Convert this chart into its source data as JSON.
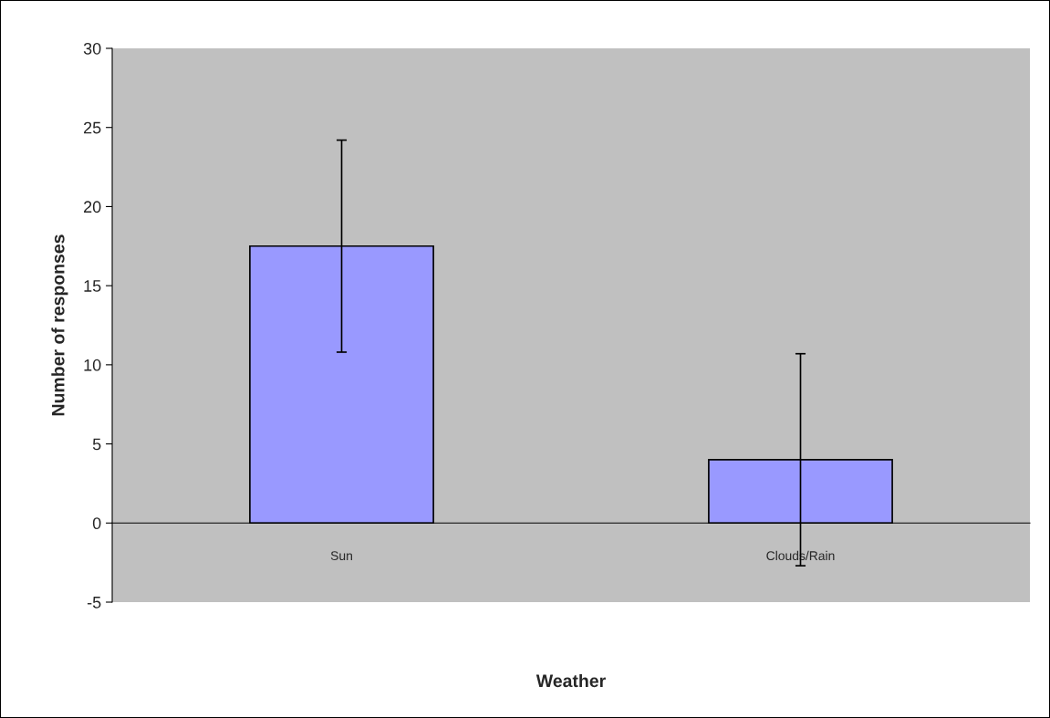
{
  "chart_data": {
    "type": "bar",
    "xlabel": "Weather",
    "ylabel": "Number of responses",
    "categories": [
      "Sun",
      "Clouds/Rain"
    ],
    "series": [
      {
        "color": "#9999ff",
        "values": [
          17.5,
          4
        ],
        "errors": [
          6.7,
          6.7
        ]
      }
    ],
    "ylim": [
      -5,
      30
    ],
    "yticks": [
      -5,
      0,
      5,
      10,
      15,
      20,
      25,
      30
    ],
    "grid": false,
    "legend": false
  }
}
